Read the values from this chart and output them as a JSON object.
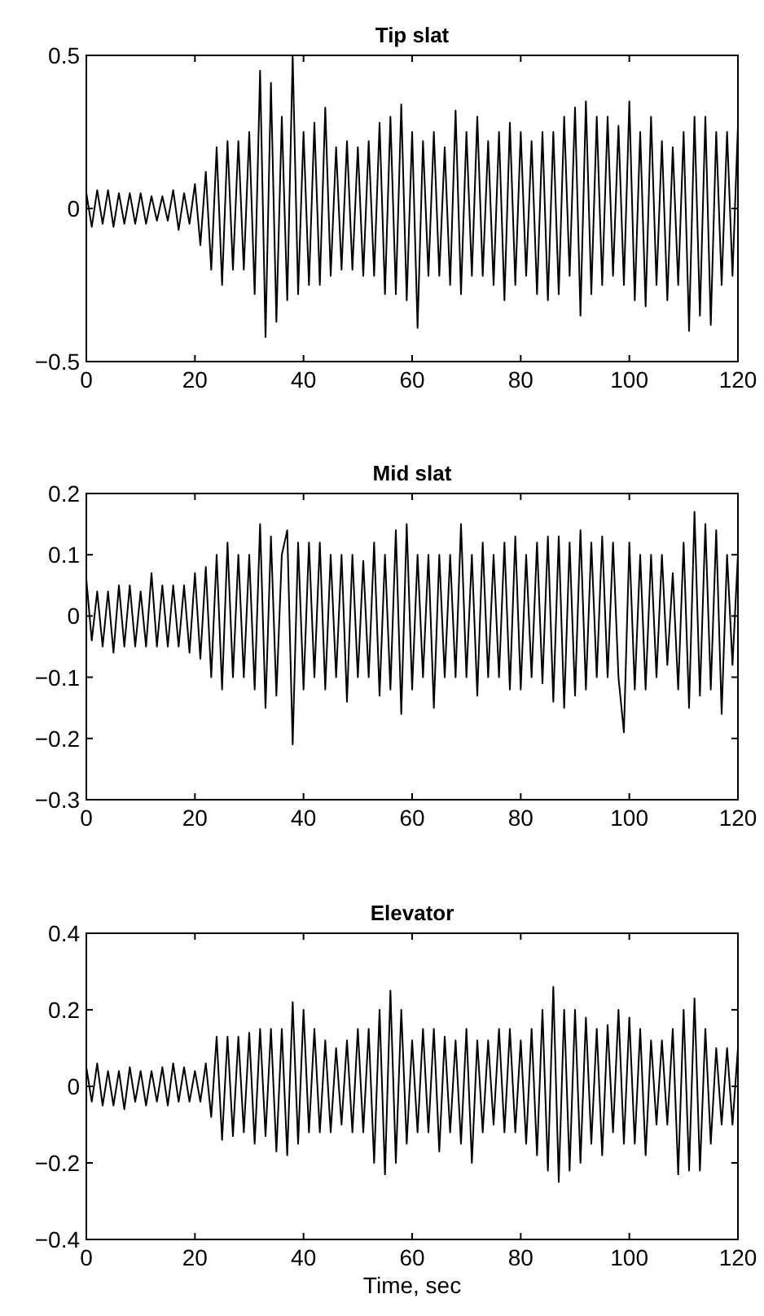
{
  "chart_data": [
    {
      "type": "line",
      "title": "Tip slat",
      "xlim": [
        0,
        120
      ],
      "xticks": [
        0,
        20,
        40,
        60,
        80,
        100,
        120
      ],
      "ylim": [
        -0.5,
        0.5
      ],
      "yticks": [
        {
          "value": -0.5,
          "label": "−0.5"
        },
        0,
        0.5
      ],
      "grid": false,
      "x": [
        0,
        1,
        2,
        3,
        4,
        5,
        6,
        7,
        8,
        9,
        10,
        11,
        12,
        13,
        14,
        15,
        16,
        17,
        18,
        19,
        20,
        21,
        22,
        23,
        24,
        25,
        26,
        27,
        28,
        29,
        30,
        31,
        32,
        33,
        34,
        35,
        36,
        37,
        38,
        39,
        40,
        41,
        42,
        43,
        44,
        45,
        46,
        47,
        48,
        49,
        50,
        51,
        52,
        53,
        54,
        55,
        56,
        57,
        58,
        59,
        60,
        61,
        62,
        63,
        64,
        65,
        66,
        67,
        68,
        69,
        70,
        71,
        72,
        73,
        74,
        75,
        76,
        77,
        78,
        79,
        80,
        81,
        82,
        83,
        84,
        85,
        86,
        87,
        88,
        89,
        90,
        91,
        92,
        93,
        94,
        95,
        96,
        97,
        98,
        99,
        100,
        101,
        102,
        103,
        104,
        105,
        106,
        107,
        108,
        109,
        110,
        111,
        112,
        113,
        114,
        115,
        116,
        117,
        118,
        119,
        120
      ],
      "series": [
        {
          "color": "#000000",
          "values": [
            0.05,
            -0.06,
            0.06,
            -0.05,
            0.06,
            -0.06,
            0.05,
            -0.05,
            0.05,
            -0.05,
            0.05,
            -0.05,
            0.04,
            -0.04,
            0.04,
            -0.04,
            0.06,
            -0.07,
            0.05,
            -0.05,
            0.08,
            -0.12,
            0.12,
            -0.2,
            0.2,
            -0.25,
            0.22,
            -0.2,
            0.22,
            -0.2,
            0.25,
            -0.28,
            0.45,
            -0.42,
            0.41,
            -0.37,
            0.3,
            -0.3,
            0.5,
            -0.28,
            0.25,
            -0.25,
            0.28,
            -0.25,
            0.33,
            -0.22,
            0.2,
            -0.2,
            0.22,
            -0.2,
            0.2,
            -0.22,
            0.22,
            -0.22,
            0.28,
            -0.28,
            0.3,
            -0.28,
            0.34,
            -0.3,
            0.25,
            -0.39,
            0.22,
            -0.22,
            0.25,
            -0.22,
            0.2,
            -0.25,
            0.32,
            -0.28,
            0.25,
            -0.22,
            0.3,
            -0.22,
            0.22,
            -0.25,
            0.25,
            -0.3,
            0.28,
            -0.25,
            0.25,
            -0.22,
            0.22,
            -0.28,
            0.25,
            -0.3,
            0.25,
            -0.28,
            0.3,
            -0.22,
            0.33,
            -0.35,
            0.35,
            -0.28,
            0.3,
            -0.25,
            0.3,
            -0.22,
            0.27,
            -0.25,
            0.35,
            -0.3,
            0.25,
            -0.32,
            0.3,
            -0.25,
            0.22,
            -0.3,
            0.2,
            -0.25,
            0.25,
            -0.4,
            0.3,
            -0.35,
            0.3,
            -0.38,
            0.25,
            -0.25,
            0.25,
            -0.22,
            0.27
          ]
        }
      ]
    },
    {
      "type": "line",
      "title": "Mid slat",
      "xlim": [
        0,
        120
      ],
      "xticks": [
        0,
        20,
        40,
        60,
        80,
        100,
        120
      ],
      "ylim": [
        -0.3,
        0.2
      ],
      "yticks": [
        {
          "value": -0.3,
          "label": "−0.3"
        },
        {
          "value": -0.2,
          "label": "−0.2"
        },
        {
          "value": -0.1,
          "label": "−0.1"
        },
        0,
        0.1,
        0.2
      ],
      "grid": false,
      "x": [
        0,
        1,
        2,
        3,
        4,
        5,
        6,
        7,
        8,
        9,
        10,
        11,
        12,
        13,
        14,
        15,
        16,
        17,
        18,
        19,
        20,
        21,
        22,
        23,
        24,
        25,
        26,
        27,
        28,
        29,
        30,
        31,
        32,
        33,
        34,
        35,
        36,
        37,
        38,
        39,
        40,
        41,
        42,
        43,
        44,
        45,
        46,
        47,
        48,
        49,
        50,
        51,
        52,
        53,
        54,
        55,
        56,
        57,
        58,
        59,
        60,
        61,
        62,
        63,
        64,
        65,
        66,
        67,
        68,
        69,
        70,
        71,
        72,
        73,
        74,
        75,
        76,
        77,
        78,
        79,
        80,
        81,
        82,
        83,
        84,
        85,
        86,
        87,
        88,
        89,
        90,
        91,
        92,
        93,
        94,
        95,
        96,
        97,
        98,
        99,
        100,
        101,
        102,
        103,
        104,
        105,
        106,
        107,
        108,
        109,
        110,
        111,
        112,
        113,
        114,
        115,
        116,
        117,
        118,
        119,
        120
      ],
      "series": [
        {
          "color": "#000000",
          "values": [
            0.06,
            -0.04,
            0.04,
            -0.05,
            0.04,
            -0.06,
            0.05,
            -0.05,
            0.05,
            -0.05,
            0.04,
            -0.05,
            0.07,
            -0.05,
            0.05,
            -0.05,
            0.05,
            -0.05,
            0.05,
            -0.06,
            0.07,
            -0.07,
            0.08,
            -0.1,
            0.1,
            -0.12,
            0.12,
            -0.1,
            0.1,
            -0.1,
            0.1,
            -0.12,
            0.15,
            -0.15,
            0.13,
            -0.13,
            0.1,
            0.14,
            -0.21,
            0.12,
            -0.12,
            0.12,
            -0.1,
            0.12,
            -0.12,
            0.1,
            -0.1,
            0.1,
            -0.14,
            0.1,
            -0.1,
            0.09,
            -0.1,
            0.12,
            -0.13,
            0.1,
            -0.12,
            0.14,
            -0.16,
            0.15,
            -0.12,
            0.1,
            -0.1,
            0.1,
            -0.15,
            0.1,
            -0.1,
            0.1,
            -0.1,
            0.15,
            -0.1,
            0.1,
            -0.13,
            0.12,
            -0.1,
            0.1,
            -0.1,
            0.12,
            -0.12,
            0.13,
            -0.12,
            0.1,
            -0.1,
            0.12,
            -0.11,
            0.13,
            -0.14,
            0.13,
            -0.15,
            0.12,
            -0.13,
            0.14,
            -0.12,
            0.12,
            -0.1,
            0.13,
            -0.1,
            0.12,
            -0.1,
            -0.19,
            0.12,
            -0.12,
            0.1,
            -0.12,
            0.1,
            -0.1,
            0.1,
            -0.08,
            0.07,
            -0.12,
            0.12,
            -0.15,
            0.17,
            -0.13,
            0.15,
            -0.12,
            0.14,
            -0.16,
            0.1,
            -0.08,
            0.1
          ]
        }
      ]
    },
    {
      "type": "line",
      "title": "Elevator",
      "xlabel": "Time, sec",
      "xlim": [
        0,
        120
      ],
      "xticks": [
        0,
        20,
        40,
        60,
        80,
        100,
        120
      ],
      "ylim": [
        -0.4,
        0.4
      ],
      "yticks": [
        {
          "value": -0.4,
          "label": "−0.4"
        },
        {
          "value": -0.2,
          "label": "−0.2"
        },
        0,
        0.2,
        0.4
      ],
      "grid": false,
      "x": [
        0,
        1,
        2,
        3,
        4,
        5,
        6,
        7,
        8,
        9,
        10,
        11,
        12,
        13,
        14,
        15,
        16,
        17,
        18,
        19,
        20,
        21,
        22,
        23,
        24,
        25,
        26,
        27,
        28,
        29,
        30,
        31,
        32,
        33,
        34,
        35,
        36,
        37,
        38,
        39,
        40,
        41,
        42,
        43,
        44,
        45,
        46,
        47,
        48,
        49,
        50,
        51,
        52,
        53,
        54,
        55,
        56,
        57,
        58,
        59,
        60,
        61,
        62,
        63,
        64,
        65,
        66,
        67,
        68,
        69,
        70,
        71,
        72,
        73,
        74,
        75,
        76,
        77,
        78,
        79,
        80,
        81,
        82,
        83,
        84,
        85,
        86,
        87,
        88,
        89,
        90,
        91,
        92,
        93,
        94,
        95,
        96,
        97,
        98,
        99,
        100,
        101,
        102,
        103,
        104,
        105,
        106,
        107,
        108,
        109,
        110,
        111,
        112,
        113,
        114,
        115,
        116,
        117,
        118,
        119,
        120
      ],
      "series": [
        {
          "color": "#000000",
          "values": [
            0.05,
            -0.04,
            0.06,
            -0.05,
            0.04,
            -0.05,
            0.04,
            -0.06,
            0.05,
            -0.04,
            0.04,
            -0.05,
            0.04,
            -0.04,
            0.05,
            -0.05,
            0.06,
            -0.04,
            0.05,
            -0.04,
            0.04,
            -0.04,
            0.06,
            -0.08,
            0.13,
            -0.14,
            0.13,
            -0.13,
            0.13,
            -0.12,
            0.14,
            -0.15,
            0.15,
            -0.13,
            0.15,
            -0.17,
            0.15,
            -0.18,
            0.22,
            -0.15,
            0.2,
            -0.12,
            0.15,
            -0.12,
            0.12,
            -0.12,
            0.1,
            -0.1,
            0.12,
            -0.12,
            0.15,
            -0.12,
            0.15,
            -0.2,
            0.2,
            -0.23,
            0.25,
            -0.2,
            0.2,
            -0.15,
            0.12,
            -0.12,
            0.15,
            -0.12,
            0.15,
            -0.17,
            0.13,
            -0.12,
            0.12,
            -0.15,
            0.15,
            -0.2,
            0.12,
            -0.12,
            0.12,
            -0.1,
            0.15,
            -0.12,
            0.15,
            -0.12,
            0.12,
            -0.15,
            0.15,
            -0.18,
            0.2,
            -0.22,
            0.26,
            -0.25,
            0.2,
            -0.22,
            0.2,
            -0.2,
            0.18,
            -0.15,
            0.15,
            -0.18,
            0.16,
            -0.12,
            0.2,
            -0.15,
            0.18,
            -0.15,
            0.15,
            -0.18,
            0.12,
            -0.1,
            0.12,
            -0.1,
            0.15,
            -0.23,
            0.2,
            -0.22,
            0.23,
            -0.22,
            0.15,
            -0.15,
            0.1,
            -0.1,
            0.1,
            -0.1,
            0.1
          ]
        }
      ]
    }
  ]
}
